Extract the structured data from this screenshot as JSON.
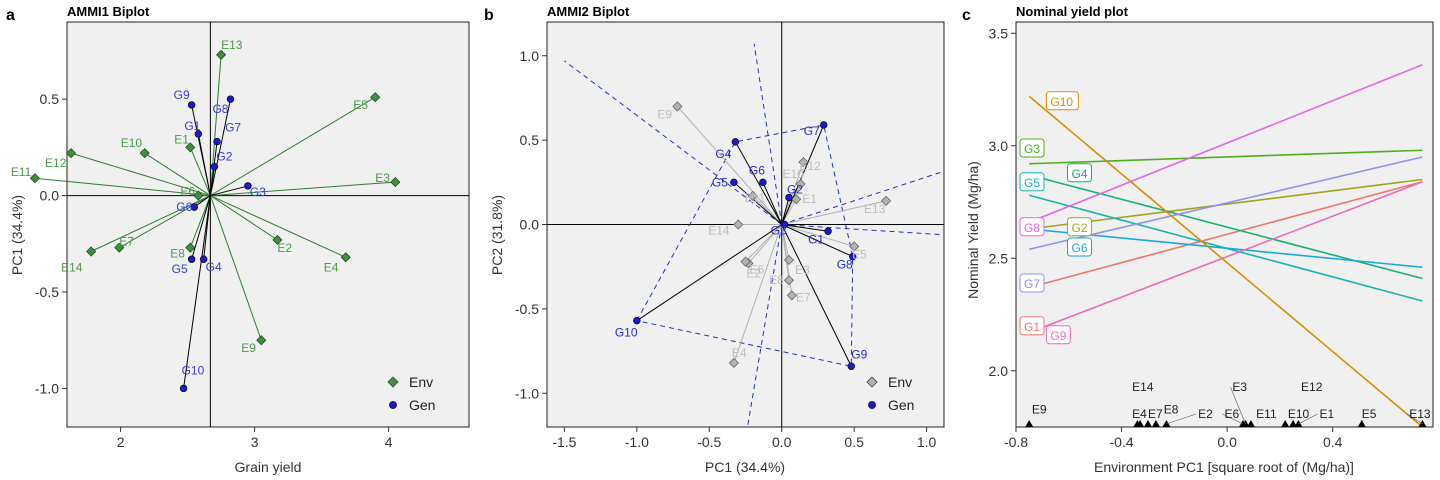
{
  "chart_data": [
    {
      "type": "scatter",
      "panel_letter": "a",
      "title": "AMMI1 Biplot",
      "xlabel": "Grain yield",
      "ylabel": "PC1 (34.4%)",
      "xlim": [
        1.6,
        4.6
      ],
      "ylim": [
        -1.2,
        0.9
      ],
      "xticks": [
        2,
        3,
        4
      ],
      "yticks": [
        -1.0,
        -0.5,
        0.0,
        0.5
      ],
      "ytick_labels": [
        "-1.0",
        "-0.5",
        "0.0",
        "0.5"
      ],
      "grid": false,
      "origin": [
        2.67,
        0.0
      ],
      "legend": {
        "position": "bottom-right",
        "entries": [
          "Env",
          "Gen"
        ]
      },
      "env_color": "#2e7d32",
      "env_fill": "#3f8f3f",
      "gen_color": "#1a1acc",
      "env_label_color": "#4a9a4a",
      "gen_label_color": "#3a3adf",
      "environments": [
        {
          "name": "E1",
          "x": 2.52,
          "y": 0.25
        },
        {
          "name": "E2",
          "x": 3.17,
          "y": -0.23
        },
        {
          "name": "E3",
          "x": 4.05,
          "y": 0.07
        },
        {
          "name": "E4",
          "x": 3.68,
          "y": -0.32
        },
        {
          "name": "E5",
          "x": 3.9,
          "y": 0.51
        },
        {
          "name": "E6",
          "x": 2.58,
          "y": 0.0
        },
        {
          "name": "E7",
          "x": 1.99,
          "y": -0.27
        },
        {
          "name": "E8",
          "x": 2.52,
          "y": -0.27
        },
        {
          "name": "E9",
          "x": 3.05,
          "y": -0.75
        },
        {
          "name": "E10",
          "x": 2.18,
          "y": 0.22
        },
        {
          "name": "E11",
          "x": 1.36,
          "y": 0.09
        },
        {
          "name": "E12",
          "x": 1.63,
          "y": 0.22
        },
        {
          "name": "E13",
          "x": 2.75,
          "y": 0.73
        },
        {
          "name": "E14",
          "x": 1.78,
          "y": -0.29
        }
      ],
      "genotypes": [
        {
          "name": "G1",
          "x": 2.58,
          "y": 0.32
        },
        {
          "name": "G2",
          "x": 2.7,
          "y": 0.15
        },
        {
          "name": "G3",
          "x": 2.95,
          "y": 0.05
        },
        {
          "name": "G4",
          "x": 2.62,
          "y": -0.33
        },
        {
          "name": "G5",
          "x": 2.53,
          "y": -0.33
        },
        {
          "name": "G6",
          "x": 2.55,
          "y": -0.06
        },
        {
          "name": "G7",
          "x": 2.72,
          "y": 0.28
        },
        {
          "name": "G8",
          "x": 2.82,
          "y": 0.5
        },
        {
          "name": "G9",
          "x": 2.53,
          "y": 0.47
        },
        {
          "name": "G10",
          "x": 2.47,
          "y": -1.0
        }
      ]
    },
    {
      "type": "scatter",
      "panel_letter": "b",
      "title": "AMMI2 Biplot",
      "xlabel": "PC1 (34.4%)",
      "ylabel": "PC2 (31.8%)",
      "xlim": [
        -1.62,
        1.12
      ],
      "ylim": [
        -1.2,
        1.2
      ],
      "xticks": [
        -1.5,
        -1.0,
        -0.5,
        0.0,
        0.5,
        1.0
      ],
      "xtick_labels": [
        "-1.5",
        "-1.0",
        "-0.5",
        "0.0",
        "0.5",
        "1.0"
      ],
      "yticks": [
        -1.0,
        -0.5,
        0.0,
        0.5,
        1.0
      ],
      "ytick_labels": [
        "-1.0",
        "-0.5",
        "0.0",
        "0.5",
        "1.0"
      ],
      "grid": false,
      "legend": {
        "position": "bottom-right",
        "entries": [
          "Env",
          "Gen"
        ]
      },
      "env_color": "#aaaaaa",
      "env_fill": "#b3b3b3",
      "env_label_color": "#bdbdbd",
      "gen_color": "#1a1acc",
      "gen_label_color": "#2a2ad5",
      "hull_color": "#2233bb",
      "environments": [
        {
          "name": "E1",
          "x": 0.1,
          "y": 0.15
        },
        {
          "name": "E2",
          "x": -0.23,
          "y": -0.23
        },
        {
          "name": "E3",
          "x": 0.05,
          "y": -0.21
        },
        {
          "name": "E4",
          "x": -0.33,
          "y": -0.82
        },
        {
          "name": "E5",
          "x": 0.5,
          "y": -0.13
        },
        {
          "name": "E6",
          "x": -0.25,
          "y": -0.22
        },
        {
          "name": "E7",
          "x": 0.07,
          "y": -0.42
        },
        {
          "name": "E8",
          "x": 0.05,
          "y": -0.33
        },
        {
          "name": "E9",
          "x": -0.72,
          "y": 0.7
        },
        {
          "name": "E10",
          "x": 0.13,
          "y": 0.24
        },
        {
          "name": "E11",
          "x": -0.2,
          "y": 0.17
        },
        {
          "name": "E12",
          "x": 0.15,
          "y": 0.37
        },
        {
          "name": "E13",
          "x": 0.72,
          "y": 0.14
        },
        {
          "name": "E14",
          "x": -0.3,
          "y": 0.0
        }
      ],
      "genotypes": [
        {
          "name": "G1",
          "x": 0.32,
          "y": -0.04
        },
        {
          "name": "G2",
          "x": 0.05,
          "y": 0.16
        },
        {
          "name": "G3",
          "x": 0.02,
          "y": 0.0
        },
        {
          "name": "G4",
          "x": -0.32,
          "y": 0.49
        },
        {
          "name": "G5",
          "x": -0.33,
          "y": 0.25
        },
        {
          "name": "G6",
          "x": -0.13,
          "y": 0.25
        },
        {
          "name": "G7",
          "x": 0.29,
          "y": 0.59
        },
        {
          "name": "G8",
          "x": 0.49,
          "y": -0.19
        },
        {
          "name": "G9",
          "x": 0.48,
          "y": -0.84
        },
        {
          "name": "G10",
          "x": -1.0,
          "y": -0.57
        }
      ],
      "hull_order": [
        "G10",
        "G4",
        "G7",
        "G8",
        "G9"
      ],
      "sector_rays": [
        {
          "x": -1.5,
          "y": 0.97
        },
        {
          "x": -0.19,
          "y": 1.07
        },
        {
          "x": 1.1,
          "y": 0.31
        },
        {
          "x": 1.1,
          "y": -0.06
        },
        {
          "x": -0.25,
          "y": -1.27
        }
      ]
    },
    {
      "type": "line",
      "panel_letter": "c",
      "title": "Nominal yield plot",
      "xlabel": "Environment PC1 [square root of  (Mg/ha)]",
      "ylabel": "Nominal Yield (Mg/ha)",
      "xlim": [
        -0.8,
        0.78
      ],
      "ylim": [
        1.75,
        3.55
      ],
      "xticks": [
        -0.8,
        -0.4,
        0.0,
        0.4
      ],
      "xtick_labels": [
        "-0.8",
        "-0.4",
        "0.0",
        "0.4"
      ],
      "yticks": [
        2.0,
        2.5,
        3.0,
        3.5
      ],
      "ytick_labels": [
        "2.0",
        "2.5",
        "3.0",
        "3.5"
      ],
      "grid": false,
      "x_range": [
        -0.75,
        0.74
      ],
      "series": [
        {
          "name": "G1",
          "y0": 2.37,
          "y1": 2.84,
          "color": "#f0766e",
          "label_x": -0.8,
          "label_y": 2.2
        },
        {
          "name": "G2",
          "y0": 2.63,
          "y1": 2.85,
          "color": "#a3a320",
          "label_x": -0.62,
          "label_y": 2.64
        },
        {
          "name": "G3",
          "y0": 2.92,
          "y1": 2.98,
          "color": "#4caf1a",
          "label_x": -0.8,
          "label_y": 2.99
        },
        {
          "name": "G4",
          "y0": 2.87,
          "y1": 2.41,
          "color": "#1aaf77",
          "label_x": -0.62,
          "label_y": 2.88
        },
        {
          "name": "G5",
          "y0": 2.78,
          "y1": 2.31,
          "color": "#18b3b3",
          "label_x": -0.8,
          "label_y": 2.84
        },
        {
          "name": "G6",
          "y0": 2.63,
          "y1": 2.46,
          "color": "#19a8d8",
          "label_x": -0.62,
          "label_y": 2.55
        },
        {
          "name": "G7",
          "y0": 2.54,
          "y1": 2.95,
          "color": "#8f90f0",
          "label_x": -0.8,
          "label_y": 2.39
        },
        {
          "name": "G8",
          "y0": 2.66,
          "y1": 3.36,
          "color": "#e066e8",
          "label_x": -0.8,
          "label_y": 2.64
        },
        {
          "name": "G9",
          "y0": 2.17,
          "y1": 2.84,
          "color": "#f068be",
          "label_x": -0.7,
          "label_y": 2.16
        },
        {
          "name": "G10",
          "y0": 3.22,
          "y1": 1.75,
          "color": "#d88f08",
          "label_x": -0.7,
          "label_y": 3.2
        }
      ],
      "environment_markers": [
        {
          "name": "E9",
          "x": -0.75,
          "label_x": -0.74,
          "label_y": 1.81
        },
        {
          "name": "E14",
          "x": -0.34,
          "label_x": -0.36,
          "label_y": 1.91
        },
        {
          "name": "E4",
          "x": -0.33,
          "label_x": -0.36,
          "label_y": 1.79
        },
        {
          "name": "E7",
          "x": -0.3,
          "label_x": -0.3,
          "label_y": 1.79
        },
        {
          "name": "E8",
          "x": -0.27,
          "label_x": -0.24,
          "label_y": 1.81
        },
        {
          "name": "E2",
          "x": -0.23,
          "label_x": -0.11,
          "label_y": 1.79
        },
        {
          "name": "E6",
          "x": 0.06,
          "label_x": -0.01,
          "label_y": 1.79
        },
        {
          "name": "E3",
          "x": 0.07,
          "label_x": 0.02,
          "label_y": 1.91
        },
        {
          "name": "E11",
          "x": 0.09,
          "label_x": 0.11,
          "label_y": 1.79
        },
        {
          "name": "E10",
          "x": 0.22,
          "label_x": 0.23,
          "label_y": 1.79
        },
        {
          "name": "E12",
          "x": 0.25,
          "label_x": 0.28,
          "label_y": 1.91
        },
        {
          "name": "E1",
          "x": 0.27,
          "label_x": 0.35,
          "label_y": 1.79
        },
        {
          "name": "E5",
          "x": 0.51,
          "label_x": 0.51,
          "label_y": 1.79
        },
        {
          "name": "E13",
          "x": 0.74,
          "label_x": 0.69,
          "label_y": 1.79
        }
      ]
    }
  ]
}
